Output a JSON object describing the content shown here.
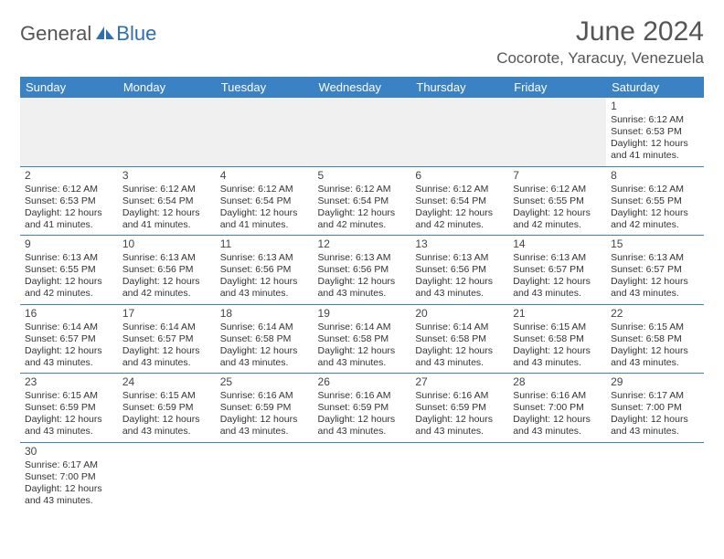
{
  "logo": {
    "text1": "General",
    "text2": "Blue"
  },
  "title": "June 2024",
  "location": "Cocorote, Yaracuy, Venezuela",
  "colors": {
    "header_bg": "#3b82c4",
    "header_fg": "#ffffff",
    "rule": "#3b82c4",
    "blank_bg": "#f0f0f0",
    "text": "#333333",
    "title": "#555555",
    "logo_accent": "#2f6fae"
  },
  "day_headers": [
    "Sunday",
    "Monday",
    "Tuesday",
    "Wednesday",
    "Thursday",
    "Friday",
    "Saturday"
  ],
  "weeks": [
    [
      null,
      null,
      null,
      null,
      null,
      null,
      {
        "n": "1",
        "sr": "6:12 AM",
        "ss": "6:53 PM",
        "dl": "12 hours and 41 minutes."
      }
    ],
    [
      {
        "n": "2",
        "sr": "6:12 AM",
        "ss": "6:53 PM",
        "dl": "12 hours and 41 minutes."
      },
      {
        "n": "3",
        "sr": "6:12 AM",
        "ss": "6:54 PM",
        "dl": "12 hours and 41 minutes."
      },
      {
        "n": "4",
        "sr": "6:12 AM",
        "ss": "6:54 PM",
        "dl": "12 hours and 41 minutes."
      },
      {
        "n": "5",
        "sr": "6:12 AM",
        "ss": "6:54 PM",
        "dl": "12 hours and 42 minutes."
      },
      {
        "n": "6",
        "sr": "6:12 AM",
        "ss": "6:54 PM",
        "dl": "12 hours and 42 minutes."
      },
      {
        "n": "7",
        "sr": "6:12 AM",
        "ss": "6:55 PM",
        "dl": "12 hours and 42 minutes."
      },
      {
        "n": "8",
        "sr": "6:12 AM",
        "ss": "6:55 PM",
        "dl": "12 hours and 42 minutes."
      }
    ],
    [
      {
        "n": "9",
        "sr": "6:13 AM",
        "ss": "6:55 PM",
        "dl": "12 hours and 42 minutes."
      },
      {
        "n": "10",
        "sr": "6:13 AM",
        "ss": "6:56 PM",
        "dl": "12 hours and 42 minutes."
      },
      {
        "n": "11",
        "sr": "6:13 AM",
        "ss": "6:56 PM",
        "dl": "12 hours and 43 minutes."
      },
      {
        "n": "12",
        "sr": "6:13 AM",
        "ss": "6:56 PM",
        "dl": "12 hours and 43 minutes."
      },
      {
        "n": "13",
        "sr": "6:13 AM",
        "ss": "6:56 PM",
        "dl": "12 hours and 43 minutes."
      },
      {
        "n": "14",
        "sr": "6:13 AM",
        "ss": "6:57 PM",
        "dl": "12 hours and 43 minutes."
      },
      {
        "n": "15",
        "sr": "6:13 AM",
        "ss": "6:57 PM",
        "dl": "12 hours and 43 minutes."
      }
    ],
    [
      {
        "n": "16",
        "sr": "6:14 AM",
        "ss": "6:57 PM",
        "dl": "12 hours and 43 minutes."
      },
      {
        "n": "17",
        "sr": "6:14 AM",
        "ss": "6:57 PM",
        "dl": "12 hours and 43 minutes."
      },
      {
        "n": "18",
        "sr": "6:14 AM",
        "ss": "6:58 PM",
        "dl": "12 hours and 43 minutes."
      },
      {
        "n": "19",
        "sr": "6:14 AM",
        "ss": "6:58 PM",
        "dl": "12 hours and 43 minutes."
      },
      {
        "n": "20",
        "sr": "6:14 AM",
        "ss": "6:58 PM",
        "dl": "12 hours and 43 minutes."
      },
      {
        "n": "21",
        "sr": "6:15 AM",
        "ss": "6:58 PM",
        "dl": "12 hours and 43 minutes."
      },
      {
        "n": "22",
        "sr": "6:15 AM",
        "ss": "6:58 PM",
        "dl": "12 hours and 43 minutes."
      }
    ],
    [
      {
        "n": "23",
        "sr": "6:15 AM",
        "ss": "6:59 PM",
        "dl": "12 hours and 43 minutes."
      },
      {
        "n": "24",
        "sr": "6:15 AM",
        "ss": "6:59 PM",
        "dl": "12 hours and 43 minutes."
      },
      {
        "n": "25",
        "sr": "6:16 AM",
        "ss": "6:59 PM",
        "dl": "12 hours and 43 minutes."
      },
      {
        "n": "26",
        "sr": "6:16 AM",
        "ss": "6:59 PM",
        "dl": "12 hours and 43 minutes."
      },
      {
        "n": "27",
        "sr": "6:16 AM",
        "ss": "6:59 PM",
        "dl": "12 hours and 43 minutes."
      },
      {
        "n": "28",
        "sr": "6:16 AM",
        "ss": "7:00 PM",
        "dl": "12 hours and 43 minutes."
      },
      {
        "n": "29",
        "sr": "6:17 AM",
        "ss": "7:00 PM",
        "dl": "12 hours and 43 minutes."
      }
    ],
    [
      {
        "n": "30",
        "sr": "6:17 AM",
        "ss": "7:00 PM",
        "dl": "12 hours and 43 minutes."
      },
      null,
      null,
      null,
      null,
      null,
      null
    ]
  ],
  "labels": {
    "sunrise": "Sunrise:",
    "sunset": "Sunset:",
    "daylight": "Daylight:"
  }
}
